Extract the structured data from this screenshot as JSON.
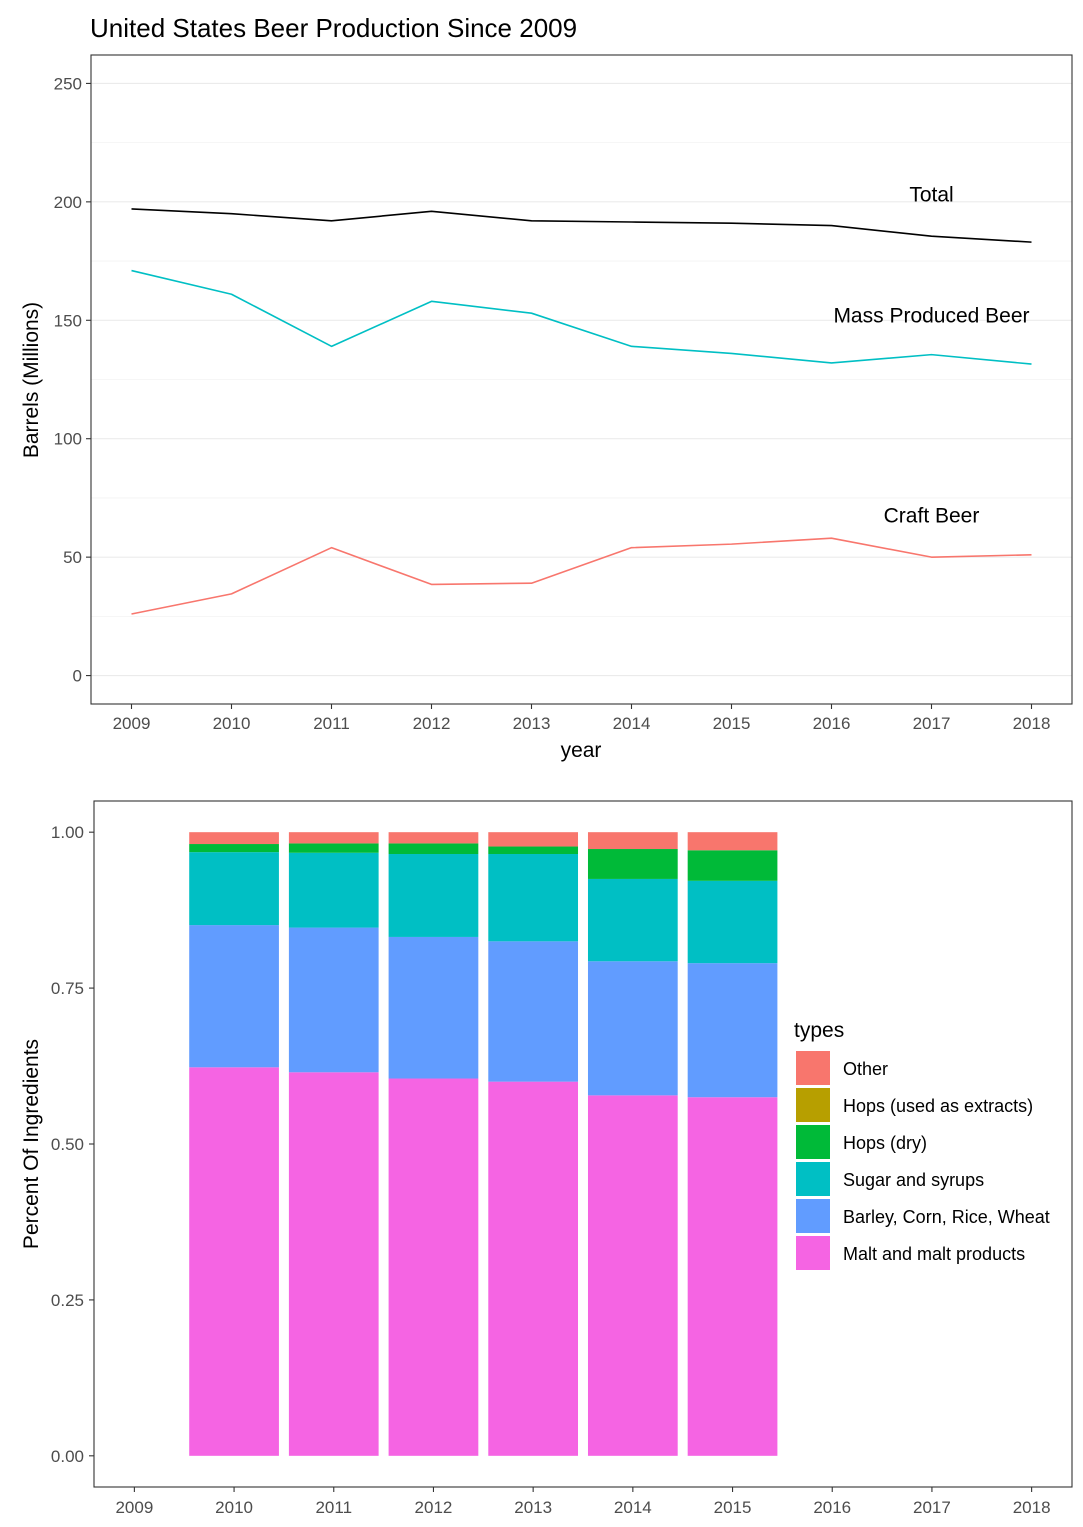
{
  "chart_data": [
    {
      "type": "line",
      "title": "United States Beer Production Since 2009",
      "xlabel": "year",
      "ylabel": "Barrels (Millions)",
      "x": [
        2009,
        2010,
        2011,
        2012,
        2013,
        2014,
        2015,
        2016,
        2017,
        2018
      ],
      "xticks": [
        "2009",
        "2010",
        "2011",
        "2012",
        "2013",
        "2014",
        "2015",
        "2016",
        "2017",
        "2018"
      ],
      "ylim": [
        -12,
        262
      ],
      "yticks": [
        0,
        50,
        100,
        150,
        200,
        250
      ],
      "ytick_labels": [
        "0",
        "50",
        "100",
        "150",
        "200",
        "250"
      ],
      "grid": true,
      "series": [
        {
          "name": "Total",
          "color": "#000000",
          "values": [
            197,
            195,
            192,
            196,
            192,
            191.5,
            191,
            190,
            185.5,
            183
          ]
        },
        {
          "name": "Mass Produced Beer",
          "color": "#00BFC4",
          "values": [
            171,
            161,
            139,
            158,
            153,
            139,
            136,
            132,
            135.5,
            131.5
          ]
        },
        {
          "name": "Craft Beer",
          "color": "#F8766D",
          "values": [
            26,
            34.5,
            54,
            38.5,
            39,
            54,
            55.5,
            58,
            50,
            51
          ]
        }
      ]
    },
    {
      "type": "bar",
      "stacked": true,
      "title": "",
      "xlabel": "",
      "ylabel": "Percent Of Ingredients",
      "categories": [
        "2009",
        "2010",
        "2011",
        "2012",
        "2013",
        "2014",
        "2015",
        "2016",
        "2017",
        "2018"
      ],
      "ylim": [
        -0.05,
        1.05
      ],
      "yticks": [
        0,
        0.25,
        0.5,
        0.75,
        1
      ],
      "ytick_labels": [
        "0.00",
        "0.25",
        "0.50",
        "0.75",
        "1.00"
      ],
      "grid": false,
      "legend_title": "types",
      "legend_position": "right",
      "series": [
        {
          "name": "Malt and malt products",
          "color": "#F564E3",
          "values": [
            null,
            0.623,
            0.615,
            0.605,
            0.6,
            0.578,
            0.575,
            null,
            null,
            null
          ]
        },
        {
          "name": "Barley, Corn, Rice, Wheat",
          "color": "#619CFF",
          "values": [
            null,
            0.228,
            0.232,
            0.227,
            0.225,
            0.215,
            0.215,
            null,
            null,
            null
          ]
        },
        {
          "name": "Sugar and syrups",
          "color": "#00BFC4",
          "values": [
            null,
            0.117,
            0.12,
            0.133,
            0.14,
            0.132,
            0.132,
            null,
            null,
            null
          ]
        },
        {
          "name": "Hops (dry)",
          "color": "#00BA38",
          "values": [
            null,
            0.013,
            0.015,
            0.017,
            0.012,
            0.048,
            0.049,
            null,
            null,
            null
          ]
        },
        {
          "name": "Hops (used as extracts)",
          "color": "#B79F00",
          "values": [
            null,
            0.0,
            0.0,
            0.0,
            0.0,
            0.0,
            0.0,
            null,
            null,
            null
          ]
        },
        {
          "name": "Other",
          "color": "#F8766D",
          "values": [
            null,
            0.019,
            0.018,
            0.018,
            0.023,
            0.027,
            0.029,
            null,
            null,
            null
          ]
        }
      ],
      "legend_order": [
        "Other",
        "Hops (used as extracts)",
        "Hops (dry)",
        "Sugar and syrups",
        "Barley, Corn, Rice, Wheat",
        "Malt and malt products"
      ]
    }
  ]
}
